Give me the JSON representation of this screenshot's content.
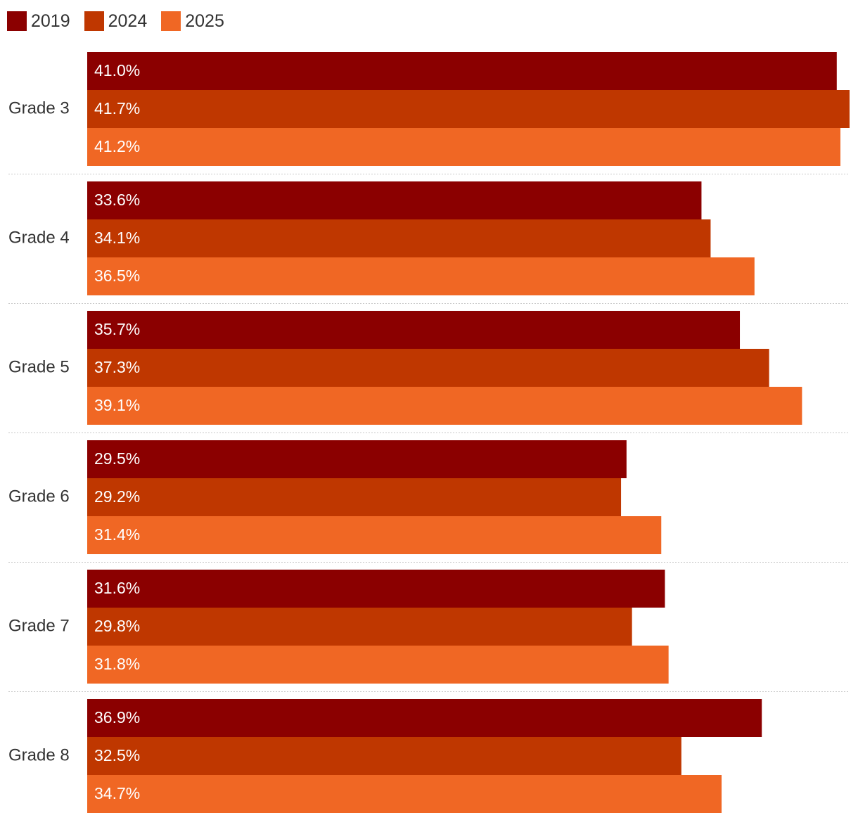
{
  "chart_data": {
    "type": "bar",
    "orientation": "horizontal",
    "categories": [
      "Grade 3",
      "Grade 4",
      "Grade 5",
      "Grade 6",
      "Grade 7",
      "Grade 8"
    ],
    "series": [
      {
        "name": "2019",
        "color": "#8b0000",
        "values": [
          41.0,
          33.6,
          35.7,
          29.5,
          31.6,
          36.9
        ]
      },
      {
        "name": "2024",
        "color": "#bf3700",
        "values": [
          41.7,
          34.1,
          37.3,
          29.2,
          29.8,
          32.5
        ]
      },
      {
        "name": "2025",
        "color": "#f06724",
        "values": [
          41.2,
          36.5,
          39.1,
          31.4,
          31.8,
          34.7
        ]
      }
    ],
    "value_suffix": "%",
    "value_decimals": 1,
    "legend_position": "top-left",
    "grid": false,
    "xlim": [
      0,
      41.7
    ]
  }
}
